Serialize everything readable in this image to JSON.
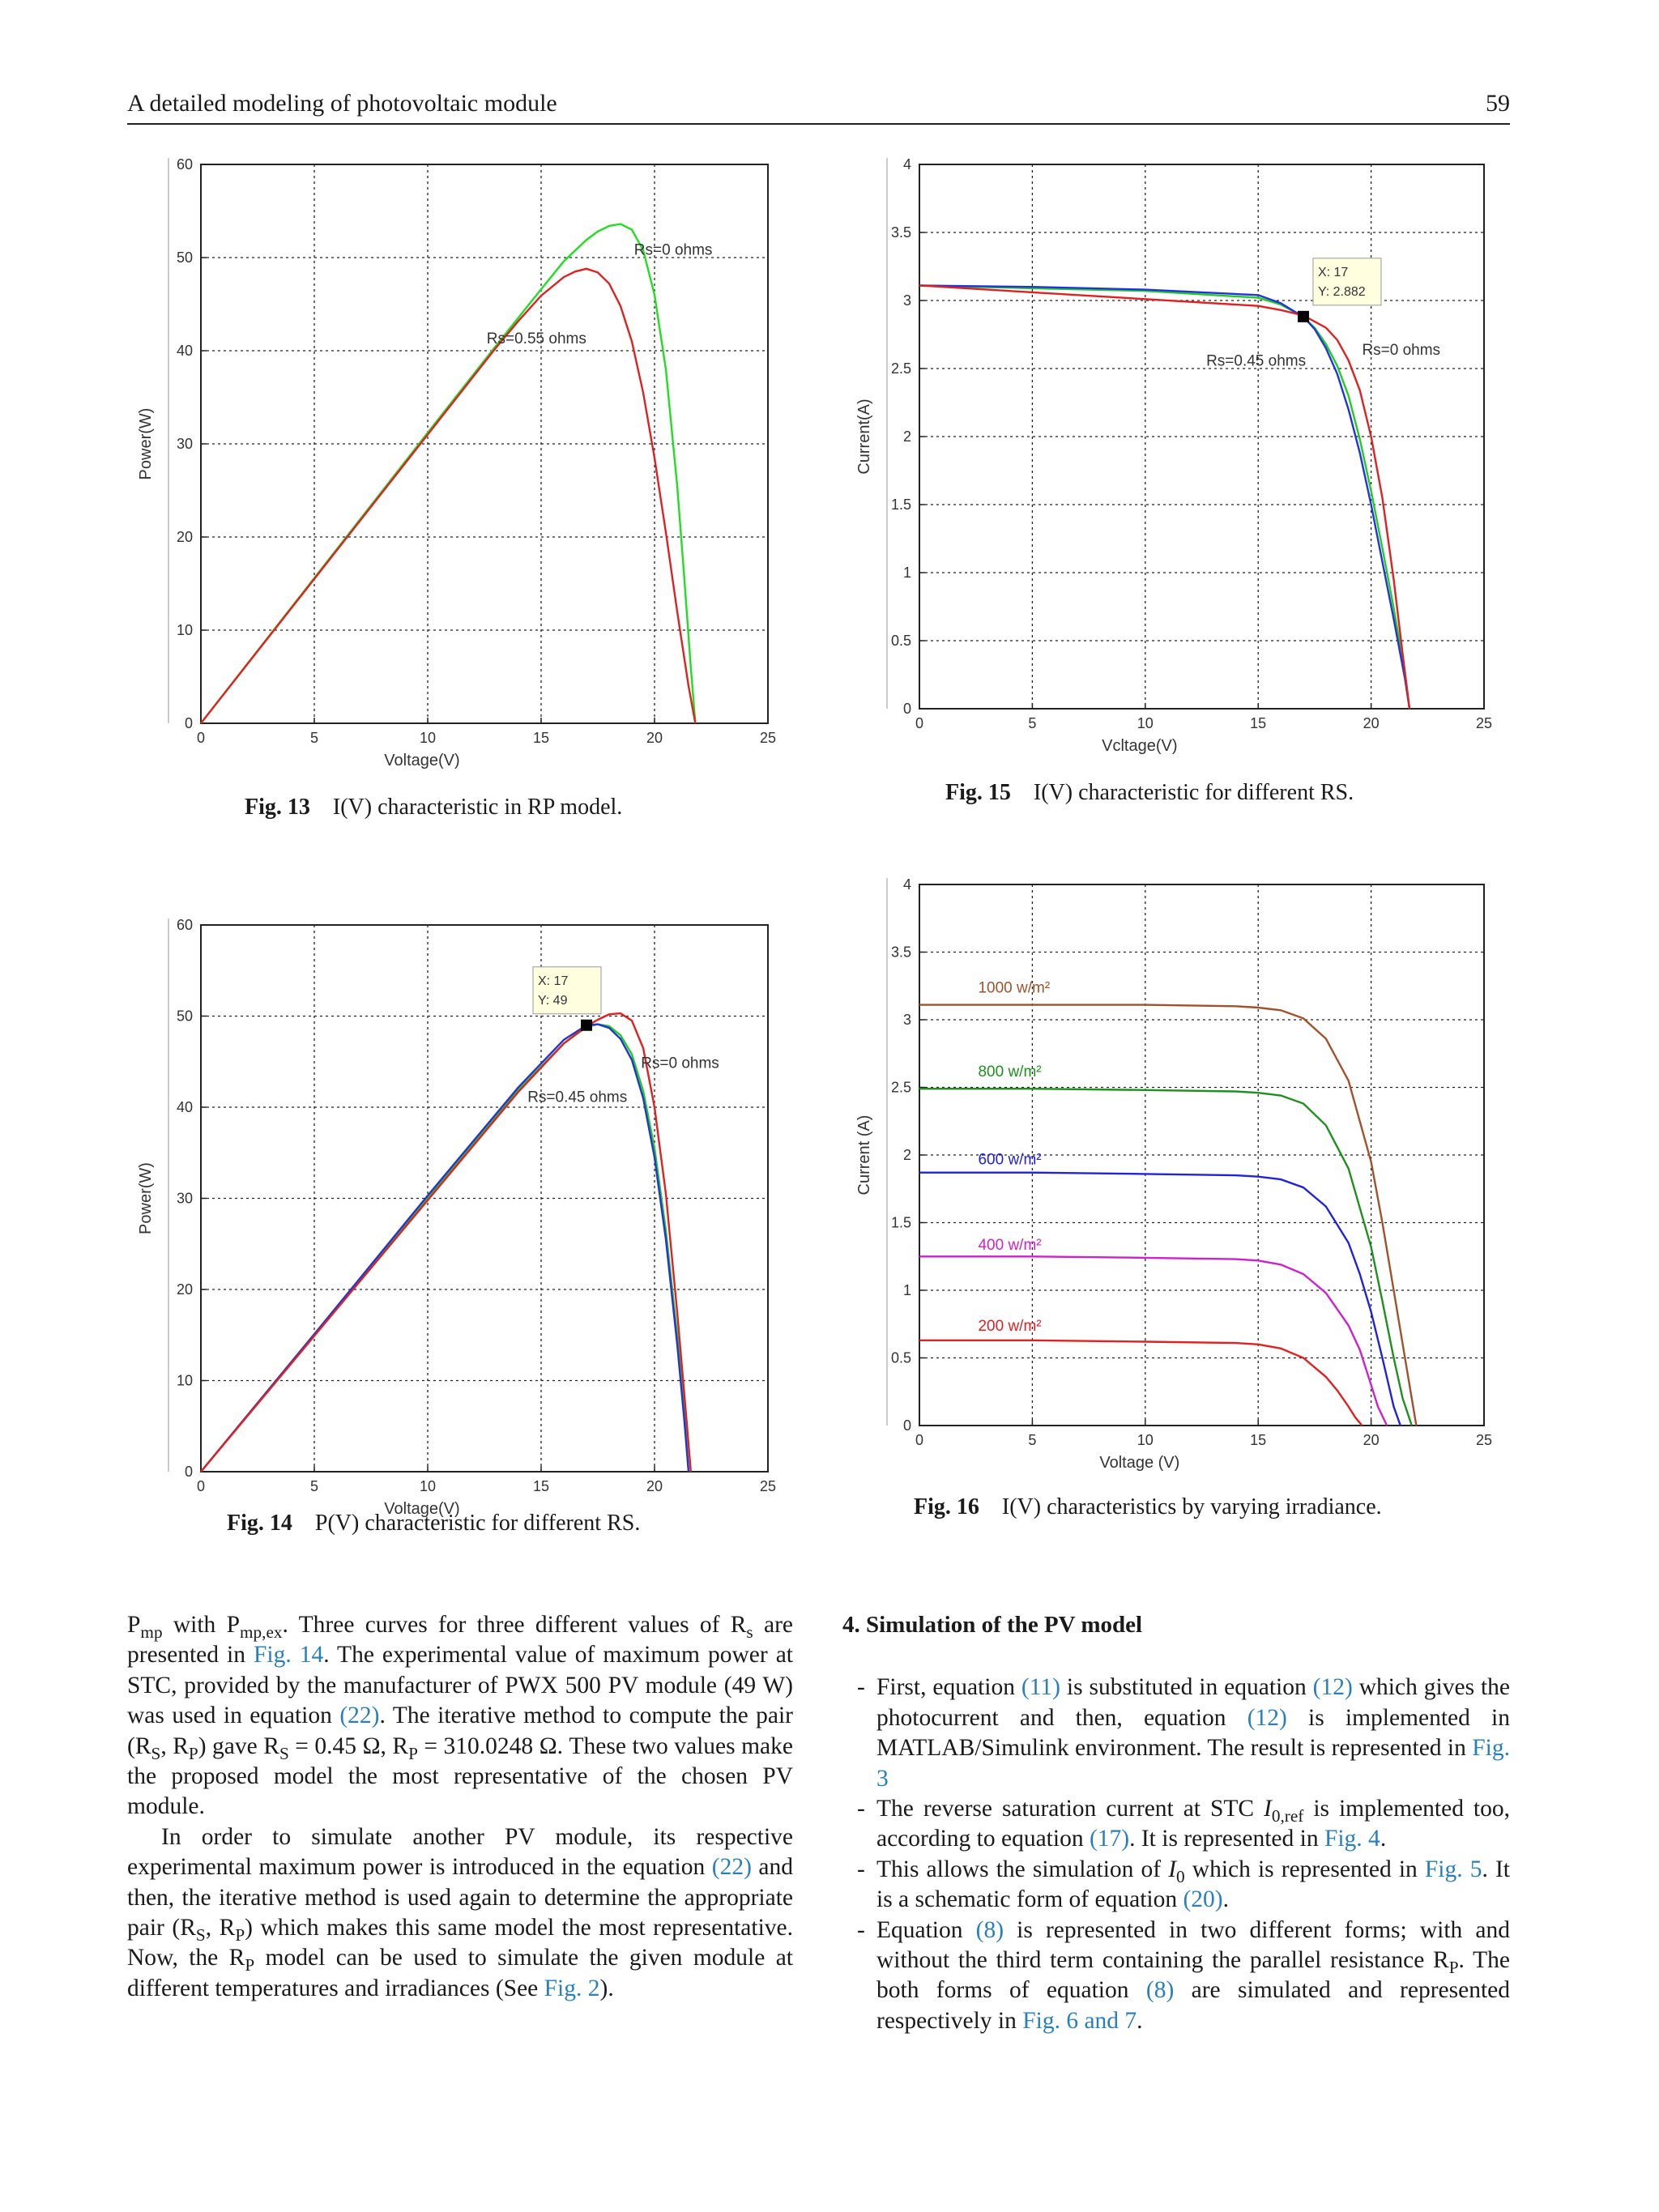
{
  "header": {
    "running_title": "A detailed modeling of photovoltaic module",
    "page_number": "59"
  },
  "captions": {
    "fig13": {
      "label": "Fig. 13",
      "text": "I(V) characteristic in RP model."
    },
    "fig14": {
      "label": "Fig. 14",
      "text": "P(V) characteristic for different RS."
    },
    "fig15": {
      "label": "Fig. 15",
      "text": "I(V) characteristic for different RS."
    },
    "fig16": {
      "label": "Fig. 16",
      "text": "I(V) characteristics by varying irradiance."
    }
  },
  "chart_data": [
    {
      "id": "fig13",
      "type": "line",
      "xlabel": "Voltage(V)",
      "ylabel": "Power(W)",
      "xlim": [
        0,
        25
      ],
      "ylim": [
        0,
        60
      ],
      "xticks": [
        0,
        5,
        10,
        15,
        20,
        25
      ],
      "yticks": [
        0,
        10,
        20,
        30,
        40,
        50,
        60
      ],
      "grid": true,
      "series": [
        {
          "name": "Rs=0 ohms",
          "color": "#22dd22",
          "x": [
            0,
            5,
            10,
            13,
            15,
            16,
            17,
            17.5,
            18,
            18.5,
            19,
            19.5,
            20,
            20.5,
            21,
            21.3,
            21.6,
            21.8
          ],
          "y": [
            0,
            15.6,
            31.2,
            40.5,
            46.6,
            49.6,
            51.9,
            52.8,
            53.4,
            53.6,
            53.0,
            50.8,
            46.0,
            38.0,
            25.5,
            16.0,
            6.0,
            0
          ]
        },
        {
          "name": "Rs=0.55 ohms",
          "color": "#dd2222",
          "x": [
            0,
            5,
            10,
            13,
            14,
            15,
            16,
            16.5,
            17,
            17.5,
            18,
            18.5,
            19,
            19.5,
            20,
            20.5,
            21,
            21.5,
            21.8
          ],
          "y": [
            0,
            15.5,
            31.0,
            40.3,
            43.2,
            45.9,
            47.9,
            48.5,
            48.8,
            48.4,
            47.2,
            44.8,
            41.0,
            35.5,
            28.5,
            20.5,
            12.0,
            4.0,
            0
          ]
        }
      ],
      "annotations": [
        "Rs=0 ohms",
        "Rs=0.55 ohms"
      ]
    },
    {
      "id": "fig14",
      "type": "line",
      "xlabel": "Voltage(V)",
      "ylabel": "Power(W)",
      "xlim": [
        0,
        25
      ],
      "ylim": [
        0,
        60
      ],
      "xticks": [
        0,
        5,
        10,
        15,
        20,
        25
      ],
      "yticks": [
        0,
        10,
        20,
        30,
        40,
        50,
        60
      ],
      "grid": true,
      "series": [
        {
          "color": "#22cc22",
          "x": [
            0,
            5,
            10,
            14,
            16,
            17,
            17.5,
            18,
            18.5,
            19,
            19.5,
            20,
            20.5,
            21,
            21.3,
            21.5
          ],
          "y": [
            0,
            15.0,
            30.1,
            41.9,
            47.0,
            48.8,
            49.1,
            48.9,
            47.9,
            45.8,
            41.8,
            35.5,
            26.5,
            15.0,
            7.0,
            0
          ]
        },
        {
          "color": "#2233dd",
          "x": [
            0,
            5,
            10,
            14,
            16,
            17,
            17.5,
            18,
            18.5,
            19,
            19.5,
            20,
            20.5,
            21,
            21.3,
            21.5
          ],
          "y": [
            0,
            15.1,
            30.3,
            42.2,
            47.4,
            49.0,
            49.1,
            48.7,
            47.5,
            45.2,
            41.0,
            34.5,
            25.5,
            14.0,
            6.0,
            0
          ]
        },
        {
          "name": "Rs=0 ohms",
          "color": "#dd2222",
          "x": [
            0,
            5,
            10,
            14,
            16,
            17,
            17.5,
            18,
            18.5,
            19,
            19.5,
            20,
            20.5,
            21,
            21.4,
            21.6
          ],
          "y": [
            0,
            14.9,
            29.8,
            41.7,
            47.0,
            48.9,
            49.6,
            50.2,
            50.3,
            49.5,
            46.5,
            40.0,
            30.5,
            17.5,
            6.0,
            0
          ]
        }
      ],
      "datatip": {
        "x_label": "X: 17",
        "y_label": "Y: 49",
        "x": 17,
        "y": 49
      },
      "annotations": [
        "Rs=0 ohms",
        "Rs=0.45 ohms"
      ]
    },
    {
      "id": "fig15",
      "type": "line",
      "xlabel": "Vcltage(V)",
      "ylabel": "Current(A)",
      "xlim": [
        0,
        25
      ],
      "ylim": [
        0,
        4
      ],
      "xticks": [
        0,
        5,
        10,
        15,
        20,
        25
      ],
      "yticks": [
        0,
        0.5,
        1,
        1.5,
        2,
        2.5,
        3,
        3.5,
        4
      ],
      "grid": true,
      "series": [
        {
          "color": "#22cc22",
          "x": [
            0,
            5,
            10,
            15,
            16,
            17,
            17.5,
            18,
            18.5,
            19,
            19.5,
            20,
            20.5,
            21,
            21.5,
            21.7
          ],
          "y": [
            3.11,
            3.09,
            3.07,
            3.02,
            2.97,
            2.88,
            2.8,
            2.68,
            2.52,
            2.3,
            1.98,
            1.6,
            1.18,
            0.74,
            0.26,
            0
          ]
        },
        {
          "color": "#2233dd",
          "x": [
            0,
            5,
            10,
            15,
            16,
            17,
            17.5,
            18,
            18.5,
            19,
            19.5,
            20,
            20.5,
            21,
            21.5,
            21.7
          ],
          "y": [
            3.11,
            3.1,
            3.08,
            3.04,
            2.98,
            2.88,
            2.79,
            2.65,
            2.46,
            2.2,
            1.88,
            1.5,
            1.08,
            0.66,
            0.22,
            0
          ]
        },
        {
          "name": "Rs=0 ohms",
          "color": "#dd2222",
          "x": [
            0,
            5,
            10,
            15,
            16,
            17,
            18,
            18.5,
            19,
            19.5,
            20,
            20.5,
            21,
            21.4,
            21.7
          ],
          "y": [
            3.11,
            3.06,
            3.01,
            2.96,
            2.93,
            2.89,
            2.8,
            2.71,
            2.56,
            2.34,
            2.0,
            1.55,
            0.95,
            0.4,
            0
          ]
        }
      ],
      "datatip": {
        "x_label": "X: 17",
        "y_label": "Y: 2.882",
        "x": 17,
        "y": 2.882
      },
      "annotations": [
        "Rs=0 ohms",
        "Rs=0.45 ohms"
      ]
    },
    {
      "id": "fig16",
      "type": "line",
      "xlabel": "Voltage (V)",
      "ylabel": "Current (A)",
      "xlim": [
        0,
        25
      ],
      "ylim": [
        0,
        4
      ],
      "xticks": [
        0,
        5,
        10,
        15,
        20,
        25
      ],
      "yticks": [
        0,
        0.5,
        1,
        1.5,
        2,
        2.5,
        3,
        3.5,
        4
      ],
      "grid": true,
      "series": [
        {
          "name": "1000 w/m²",
          "color": "#a0522d",
          "x": [
            0,
            5,
            10,
            14,
            15,
            16,
            17,
            18,
            19,
            20,
            20.5,
            21,
            21.5,
            22
          ],
          "y": [
            3.11,
            3.11,
            3.11,
            3.1,
            3.09,
            3.07,
            3.01,
            2.86,
            2.55,
            1.95,
            1.5,
            1.0,
            0.5,
            0
          ]
        },
        {
          "name": "800 w/m²",
          "color": "#1f8f1f",
          "x": [
            0,
            5,
            10,
            14,
            15,
            16,
            17,
            18,
            19,
            20,
            20.5,
            21,
            21.4,
            21.8
          ],
          "y": [
            2.49,
            2.49,
            2.48,
            2.47,
            2.46,
            2.44,
            2.38,
            2.22,
            1.9,
            1.32,
            0.92,
            0.5,
            0.2,
            0
          ]
        },
        {
          "name": "600 w/m²",
          "color": "#2222dd",
          "x": [
            0,
            5,
            10,
            14,
            15,
            16,
            17,
            18,
            19,
            19.5,
            20,
            20.5,
            21,
            21.3
          ],
          "y": [
            1.87,
            1.87,
            1.86,
            1.85,
            1.84,
            1.82,
            1.76,
            1.62,
            1.35,
            1.12,
            0.84,
            0.5,
            0.14,
            0
          ]
        },
        {
          "name": "400 w/m²",
          "color": "#cc22cc",
          "x": [
            0,
            5,
            10,
            14,
            15,
            16,
            17,
            18,
            19,
            19.5,
            20,
            20.3,
            20.7
          ],
          "y": [
            1.25,
            1.25,
            1.24,
            1.23,
            1.22,
            1.19,
            1.12,
            0.98,
            0.74,
            0.56,
            0.3,
            0.14,
            0
          ]
        },
        {
          "name": "200 w/m²",
          "color": "#dd2222",
          "x": [
            0,
            5,
            10,
            14,
            15,
            16,
            17,
            18,
            18.5,
            19,
            19.3,
            19.6
          ],
          "y": [
            0.63,
            0.63,
            0.62,
            0.61,
            0.6,
            0.57,
            0.5,
            0.36,
            0.26,
            0.14,
            0.06,
            0
          ]
        }
      ],
      "annotations": [
        "1000 w/m²",
        "800 w/m²",
        "600 w/m²",
        "400 w/m²",
        "200 w/m²"
      ]
    }
  ],
  "body": {
    "left_p1": "P<sub>mp</sub> with P<sub>mp,ex</sub>. Three curves for three different values of R<sub>s</sub> are presented in <span class=\"lnk\">Fig. 14</span>. The experimental value of maximum power at STC, provided by the manufacturer of PWX 500 PV module (49 W) was used in equation <span class=\"lnk\">(22)</span>. The iterative method to compute the pair (R<sub>S</sub>, R<sub>P</sub>) gave R<sub>S</sub> = 0.45 Ω, R<sub>P</sub> = 310.0248 Ω. These two values make the proposed model the most representative of the chosen PV module.",
    "left_p2": "In order to simulate another PV module, its respective experimental maximum power is introduced in the equation <span class=\"lnk\">(22)</span> and then, the iterative method is used again to determine the appropriate pair (R<sub>S</sub>, R<sub>P</sub>) which makes this same model the most representative. Now, the R<sub>P</sub> model can be used to simulate the given module at different temperatures and irradiances (See <span class=\"lnk\">Fig. 2</span>).",
    "section_heading": "4. Simulation of the PV model",
    "bullets": [
      "First, equation <span class=\"lnk\">(11)</span> is substituted in equation <span class=\"lnk\">(12)</span> which gives the photocurrent and then, equation <span class=\"lnk\">(12)</span> is implemented in MATLAB/Simulink environment. The result is represented in <span class=\"lnk\">Fig. 3</span>",
      "The reverse saturation current at STC <i>I</i><sub>0,ref</sub> is implemented too, according to equation <span class=\"lnk\">(17)</span>. It is represented in <span class=\"lnk\">Fig. 4</span>.",
      "This allows the simulation of <i>I</i><sub>0</sub> which is represented in <span class=\"lnk\">Fig. 5</span>. It is a schematic form of equation <span class=\"lnk\">(20)</span>.",
      "Equation <span class=\"lnk\">(8)</span> is represented in two different forms; with and without the third term containing the parallel resistance R<sub>P</sub>. The both forms of equation <span class=\"lnk\">(8)</span> are simulated and represented respectively in <span class=\"lnk\">Fig. 6 and 7</span>."
    ]
  }
}
